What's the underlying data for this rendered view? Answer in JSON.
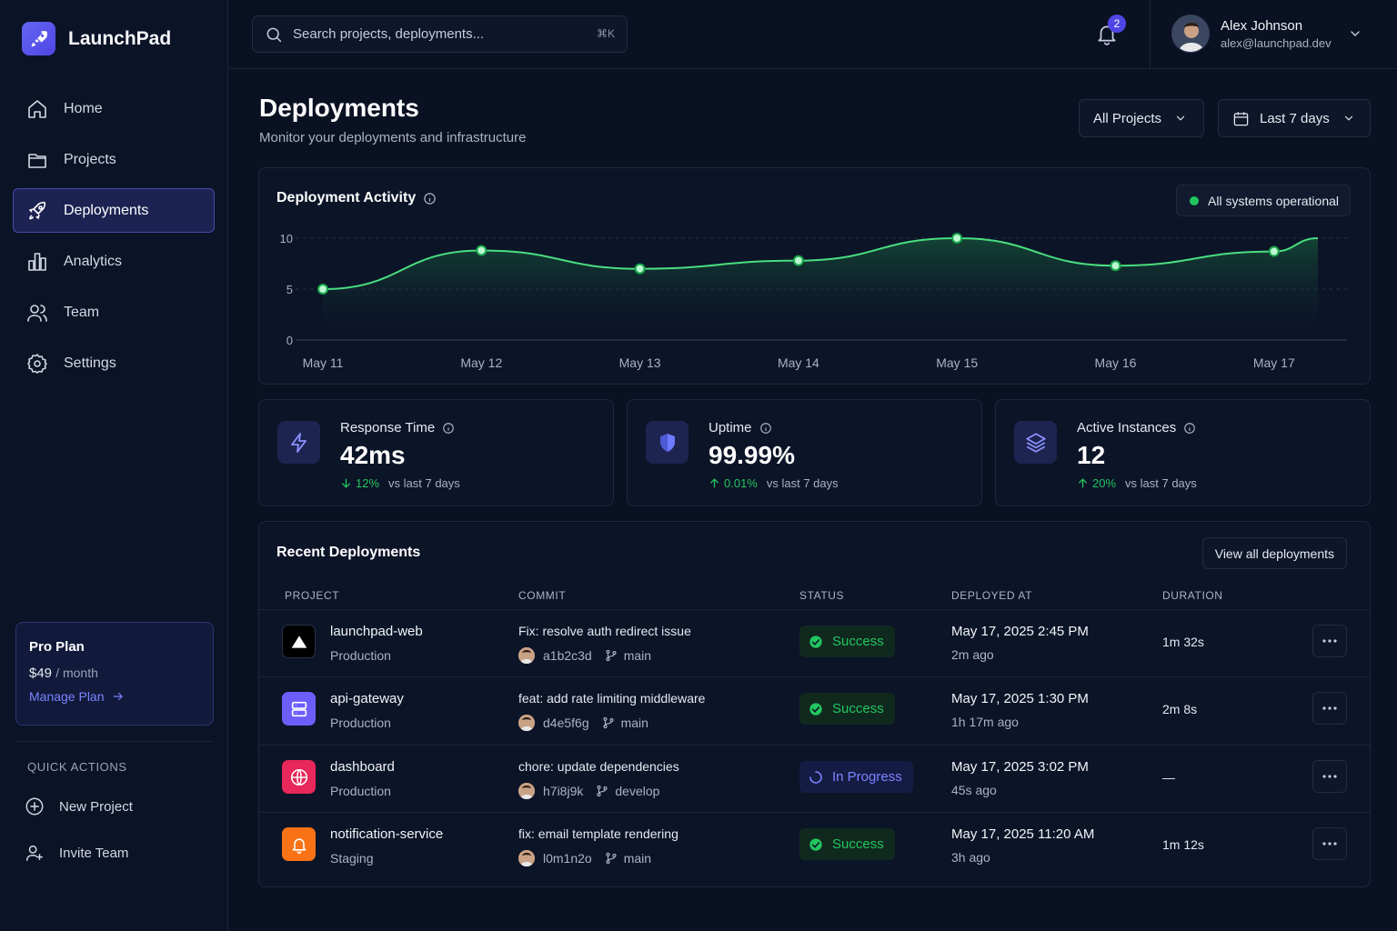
{
  "app": {
    "name": "LaunchPad"
  },
  "sidebar": {
    "items": [
      {
        "label": "Home",
        "icon": "home-icon"
      },
      {
        "label": "Projects",
        "icon": "folder-icon"
      },
      {
        "label": "Deployments",
        "icon": "rocket-icon",
        "active": true
      },
      {
        "label": "Analytics",
        "icon": "bar-chart-icon"
      },
      {
        "label": "Team",
        "icon": "users-icon"
      },
      {
        "label": "Settings",
        "icon": "gear-icon"
      }
    ],
    "plan": {
      "title": "Pro Plan",
      "price": "$49",
      "period": "/ month",
      "link": "Manage Plan"
    },
    "quick_actions": {
      "label": "QUICK ACTIONS",
      "items": [
        {
          "label": "New Project",
          "icon": "plus-circle-icon"
        },
        {
          "label": "Invite Team",
          "icon": "user-plus-icon"
        }
      ]
    }
  },
  "topbar": {
    "search_placeholder": "Search projects, deployments...",
    "shortcut": "⌘K",
    "notifications": "2",
    "user": {
      "name": "Alex Johnson",
      "email": "alex@launchpad.dev"
    }
  },
  "header": {
    "title": "Deployments",
    "subtitle": "Monitor your deployments and infrastructure",
    "project_filter": "All Projects",
    "range_filter": "Last 7 days"
  },
  "activity": {
    "title": "Deployment Activity",
    "status": "All systems operational"
  },
  "chart_data": {
    "type": "area",
    "x": [
      "May 11",
      "May 12",
      "May 13",
      "May 14",
      "May 15",
      "May 16",
      "May 17"
    ],
    "values": [
      5,
      8.8,
      7,
      7.8,
      10,
      7.3,
      8.7
    ],
    "yticks": [
      0,
      5,
      10
    ],
    "ylim": [
      0,
      10
    ],
    "grid": true,
    "colors": {
      "line": "#4ade80",
      "fill": "#14532d"
    }
  },
  "stats": [
    {
      "label": "Response Time",
      "value": "42ms",
      "delta": "12%",
      "direction": "down",
      "vs": "vs last 7 days",
      "icon": "lightning-icon"
    },
    {
      "label": "Uptime",
      "value": "99.99%",
      "delta": "0.01%",
      "direction": "up",
      "vs": "vs last 7 days",
      "icon": "shield-icon"
    },
    {
      "label": "Active Instances",
      "value": "12",
      "delta": "20%",
      "direction": "up",
      "vs": "vs last 7 days",
      "icon": "layers-icon"
    }
  ],
  "deployments": {
    "title": "Recent Deployments",
    "view_all": "View all deployments",
    "columns": [
      "PROJECT",
      "COMMIT",
      "STATUS",
      "DEPLOYED AT",
      "DURATION"
    ],
    "rows": [
      {
        "project": "launchpad-web",
        "env": "Production",
        "commit": "Fix: resolve auth redirect issue",
        "hash": "a1b2c3d",
        "branch": "main",
        "status": "Success",
        "deployed": "May 17, 2025 2:45 PM",
        "ago": "2m ago",
        "duration": "1m 32s",
        "icon": "triangle-icon",
        "color": "#000000"
      },
      {
        "project": "api-gateway",
        "env": "Production",
        "commit": "feat: add rate limiting middleware",
        "hash": "d4e5f6g",
        "branch": "main",
        "status": "Success",
        "deployed": "May 17, 2025 1:30 PM",
        "ago": "1h 17m ago",
        "duration": "2m 8s",
        "icon": "server-icon",
        "color": "#6d5efc"
      },
      {
        "project": "dashboard",
        "env": "Production",
        "commit": "chore: update dependencies",
        "hash": "h7i8j9k",
        "branch": "develop",
        "status": "In Progress",
        "deployed": "May 17, 2025 3:02 PM",
        "ago": "45s ago",
        "duration": "—",
        "icon": "globe-icon",
        "color": "#e8285a"
      },
      {
        "project": "notification-service",
        "env": "Staging",
        "commit": "fix: email template rendering",
        "hash": "l0m1n2o",
        "branch": "main",
        "status": "Success",
        "deployed": "May 17, 2025 11:20 AM",
        "ago": "3h ago",
        "duration": "1m 12s",
        "icon": "bell-icon",
        "color": "#f97316"
      }
    ]
  }
}
